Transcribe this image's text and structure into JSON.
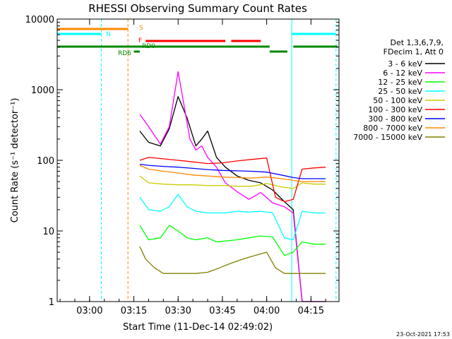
{
  "chart_data": {
    "type": "line",
    "title": "RHESSI Observing Summary Count Rates",
    "xlabel": "Start Time (11-Dec-14 02:49:02)",
    "ylabel": "Count Rate (s⁻¹ detector⁻¹)",
    "y_scale": "log",
    "ylim": [
      1,
      10000
    ],
    "xlim": [
      "02:49:02",
      "04:24:30"
    ],
    "x_ticks": [
      "03:00",
      "03:15",
      "03:30",
      "03:45",
      "04:00",
      "04:15"
    ],
    "y_ticks": [
      "1",
      "10",
      "100",
      "1000",
      "10000"
    ],
    "legend_header": [
      "Det 1,3,6,7,9,",
      "FDecim 1, Att 0"
    ],
    "legend_position": "right",
    "footer_date": "23-Oct-2021 17:53",
    "flag_labels": [
      "S",
      "N",
      "F",
      "RD6",
      "RD0"
    ],
    "series": [
      {
        "name": "3 - 6 keV",
        "color": "#000000",
        "x": [
          "03:17",
          "03:20",
          "03:24",
          "03:27",
          "03:30",
          "03:33",
          "03:36",
          "03:38",
          "03:40",
          "03:43",
          "03:46",
          "03:50",
          "03:54",
          "03:58",
          "04:02",
          "04:06",
          "04:09",
          "04:12",
          "04:16",
          "04:20"
        ],
        "values": [
          260,
          180,
          160,
          280,
          800,
          400,
          160,
          200,
          260,
          110,
          80,
          60,
          52,
          48,
          38,
          26,
          20,
          0,
          0,
          0
        ]
      },
      {
        "name": "6 - 12 keV",
        "color": "#ff00ff",
        "x": [
          "03:17",
          "03:20",
          "03:24",
          "03:27",
          "03:30",
          "03:32",
          "03:34",
          "03:36",
          "03:38",
          "03:40",
          "03:43",
          "03:46",
          "03:50",
          "03:54",
          "03:58",
          "04:02",
          "04:06",
          "04:09",
          "04:12",
          "04:16",
          "04:20"
        ],
        "values": [
          450,
          300,
          170,
          300,
          1800,
          600,
          200,
          140,
          160,
          110,
          80,
          48,
          36,
          28,
          35,
          25,
          22,
          18,
          0,
          0,
          0
        ]
      },
      {
        "name": "12 - 25 keV",
        "color": "#00ff00",
        "x": [
          "03:17",
          "03:20",
          "03:24",
          "03:27",
          "03:30",
          "03:33",
          "03:36",
          "03:40",
          "03:43",
          "03:46",
          "03:50",
          "03:54",
          "03:58",
          "04:02",
          "04:06",
          "04:09",
          "04:12",
          "04:16",
          "04:20"
        ],
        "values": [
          12,
          7.5,
          8,
          12,
          10,
          8,
          7.5,
          8,
          7,
          7.2,
          7.5,
          8,
          8.5,
          8.2,
          4.5,
          5,
          7,
          6.5,
          6.5
        ]
      },
      {
        "name": "25 - 50 keV",
        "color": "#00ffff",
        "x": [
          "03:17",
          "03:20",
          "03:24",
          "03:27",
          "03:30",
          "03:33",
          "03:36",
          "03:40",
          "03:43",
          "03:46",
          "03:50",
          "03:54",
          "03:58",
          "04:02",
          "04:06",
          "04:09",
          "04:12",
          "04:16",
          "04:20"
        ],
        "values": [
          30,
          20,
          19,
          22,
          33,
          22,
          19,
          18,
          18,
          18,
          19,
          18.5,
          19,
          18,
          8,
          7.5,
          19,
          18,
          18
        ]
      },
      {
        "name": "50 - 100 keV",
        "color": "#cccc00",
        "x": [
          "03:17",
          "03:20",
          "03:25",
          "03:30",
          "03:35",
          "03:40",
          "03:45",
          "03:50",
          "03:55",
          "04:00",
          "04:05",
          "04:09",
          "04:12",
          "04:16",
          "04:20"
        ],
        "values": [
          60,
          48,
          46,
          45,
          45,
          44,
          44,
          43,
          43,
          47,
          42,
          40,
          48,
          46,
          46
        ]
      },
      {
        "name": "100 - 300 keV",
        "color": "#ff0000",
        "x": [
          "03:17",
          "03:20",
          "03:25",
          "03:30",
          "03:35",
          "03:40",
          "03:45",
          "03:50",
          "03:55",
          "04:00",
          "04:03",
          "04:06",
          "04:09",
          "04:12",
          "04:16",
          "04:20"
        ],
        "values": [
          100,
          110,
          105,
          100,
          95,
          90,
          92,
          98,
          103,
          108,
          30,
          26,
          28,
          75,
          78,
          80
        ]
      },
      {
        "name": "300 - 800 keV",
        "color": "#0000ff",
        "x": [
          "03:17",
          "03:20",
          "03:25",
          "03:30",
          "03:35",
          "03:40",
          "03:45",
          "03:50",
          "03:55",
          "04:00",
          "04:05",
          "04:09",
          "04:12",
          "04:16",
          "04:20"
        ],
        "values": [
          88,
          85,
          82,
          80,
          77,
          74,
          72,
          71,
          70,
          68,
          62,
          57,
          55,
          55,
          55
        ]
      },
      {
        "name": "800 - 7000 keV",
        "color": "#ff8800",
        "x": [
          "03:17",
          "03:20",
          "03:25",
          "03:30",
          "03:35",
          "03:40",
          "03:45",
          "03:50",
          "03:55",
          "04:00",
          "04:05",
          "04:09",
          "04:12",
          "04:16",
          "04:20"
        ],
        "values": [
          85,
          75,
          70,
          66,
          62,
          60,
          58,
          57,
          56,
          58,
          55,
          52,
          50,
          50,
          50
        ]
      },
      {
        "name": "7000 - 15000 keV",
        "color": "#808000",
        "x": [
          "03:17",
          "03:19",
          "03:22",
          "03:25",
          "03:28",
          "03:32",
          "03:36",
          "03:40",
          "03:44",
          "03:48",
          "03:52",
          "03:56",
          "04:00",
          "04:03",
          "04:06",
          "04:09",
          "04:12",
          "04:16",
          "04:20"
        ],
        "values": [
          6,
          4,
          3,
          2.5,
          2.5,
          2.5,
          2.5,
          2.6,
          3,
          3.5,
          4,
          4.5,
          5,
          3,
          2.5,
          2.5,
          2.5,
          2.5,
          2.5
        ]
      }
    ]
  }
}
